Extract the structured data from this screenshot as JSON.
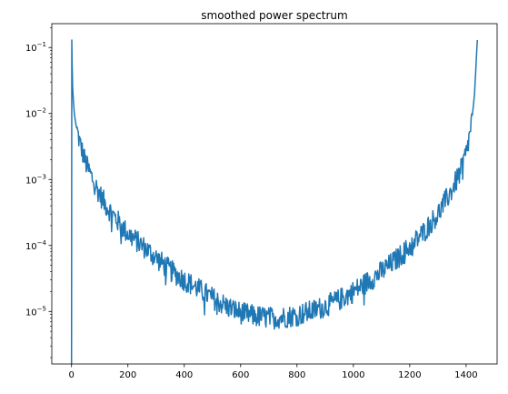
{
  "chart_data": {
    "type": "line",
    "title": "smoothed power spectrum",
    "xlabel": "",
    "ylabel": "",
    "xlim": [
      -70,
      1510
    ],
    "ylim": [
      1.6e-06,
      0.23
    ],
    "yscale": "log",
    "grid": false,
    "legend": "none",
    "line_color": "#1f77b4",
    "x_ticks": [
      0,
      200,
      400,
      600,
      800,
      1000,
      1200,
      1400
    ],
    "x_tick_labels": [
      "0",
      "200",
      "400",
      "600",
      "800",
      "1000",
      "1200",
      "1400"
    ],
    "y_ticks": [
      {
        "value": 1e-05,
        "base": "10",
        "exp": "−5"
      },
      {
        "value": 0.0001,
        "base": "10",
        "exp": "−4"
      },
      {
        "value": 0.001,
        "base": "10",
        "exp": "−3"
      },
      {
        "value": 0.01,
        "base": "10",
        "exp": "−2"
      },
      {
        "value": 0.1,
        "base": "10",
        "exp": "−1"
      }
    ],
    "series": [
      {
        "x": [
          0,
          1,
          2,
          3,
          5,
          8,
          10,
          15,
          20,
          30,
          40,
          50,
          60,
          80,
          100,
          120,
          150,
          180,
          200,
          250,
          300,
          350,
          400,
          450,
          500,
          550,
          600,
          650,
          700,
          720,
          750,
          800,
          850,
          900,
          950,
          1000,
          1050,
          1100,
          1150,
          1200,
          1250,
          1300,
          1350,
          1380,
          1400,
          1410,
          1420,
          1425,
          1430,
          1432,
          1435,
          1437,
          1439,
          1440
        ],
        "values": [
          1.6e-06,
          0.13,
          0.06,
          0.03,
          0.02,
          0.013,
          0.01,
          0.007,
          0.0055,
          0.0035,
          0.0025,
          0.0018,
          0.0014,
          0.0009,
          0.0006,
          0.00042,
          0.00028,
          0.00019,
          0.00015,
          0.0001,
          6.5e-05,
          4.2e-05,
          3e-05,
          2.2e-05,
          1.6e-05,
          1.2e-05,
          9.5e-06,
          8.5e-06,
          8e-06,
          8e-06,
          8.2e-06,
          8.8e-06,
          1e-05,
          1.2e-05,
          1.5e-05,
          2e-05,
          2.8e-05,
          4e-05,
          6e-05,
          9.5e-05,
          0.00016,
          0.0003,
          0.0007,
          0.0013,
          0.0025,
          0.004,
          0.008,
          0.012,
          0.02,
          0.03,
          0.05,
          0.08,
          0.11,
          0.13
        ]
      }
    ]
  }
}
